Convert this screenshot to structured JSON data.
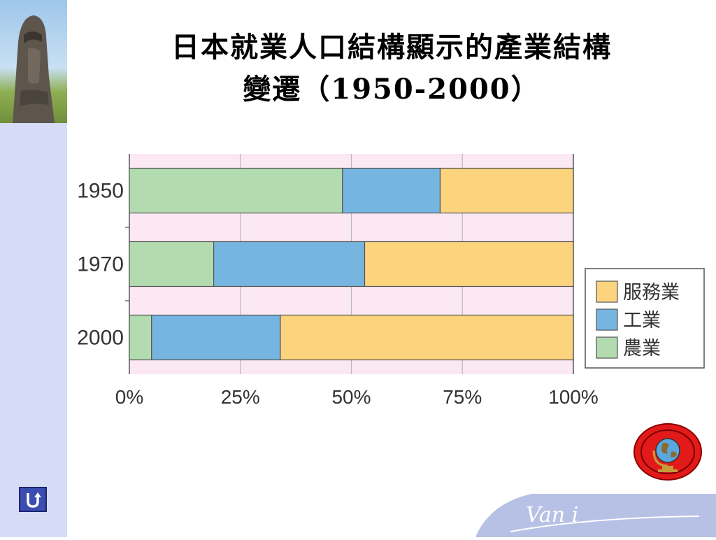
{
  "slide": {
    "title_line1": "日本就業人口結構顯示的產業結構",
    "title_line2": "變遷（1950-2000）"
  },
  "chart_data": {
    "type": "bar",
    "orientation": "horizontal",
    "stacked": true,
    "categories": [
      "1950",
      "1970",
      "2000"
    ],
    "series": [
      {
        "name": "農業",
        "values": [
          48,
          19,
          5
        ],
        "color": "#b3dbb0"
      },
      {
        "name": "工業",
        "values": [
          22,
          34,
          29
        ],
        "color": "#77b5e1"
      },
      {
        "name": "服務業",
        "values": [
          30,
          47,
          66
        ],
        "color": "#fcd47e"
      }
    ],
    "x_ticks": [
      "0%",
      "25%",
      "50%",
      "75%",
      "100%"
    ],
    "xlim": [
      0,
      100
    ],
    "grid": true,
    "legend_position": "right",
    "legend_order": [
      "服務業",
      "工業",
      "農業"
    ],
    "background_color": "#fbe8f3"
  },
  "icons": {
    "back": "u-turn-icon",
    "globe": "globe-icon",
    "logo": "vani-logo"
  },
  "logo_text": "Van i"
}
